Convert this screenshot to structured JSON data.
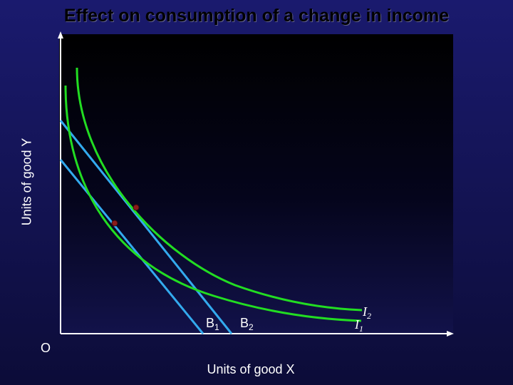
{
  "title": "Effect on consumption of a change in income",
  "axes": {
    "y_label": "Units of good Y",
    "x_label": "Units of good X",
    "origin_label": "O"
  },
  "budget_lines": [
    {
      "label": "B",
      "subscript": "1"
    },
    {
      "label": "B",
      "subscript": "2"
    }
  ],
  "indifference_curves": [
    {
      "label": "I",
      "subscript": "1"
    },
    {
      "label": "I",
      "subscript": "2"
    }
  ],
  "colors": {
    "background": "#141456",
    "plot_area": "#000000",
    "indifference_curve": "#22dd22",
    "budget_line": "#33aaee",
    "tangency_point": "#8b1a1a",
    "axis": "#ffffff",
    "text": "#ffffff"
  }
}
